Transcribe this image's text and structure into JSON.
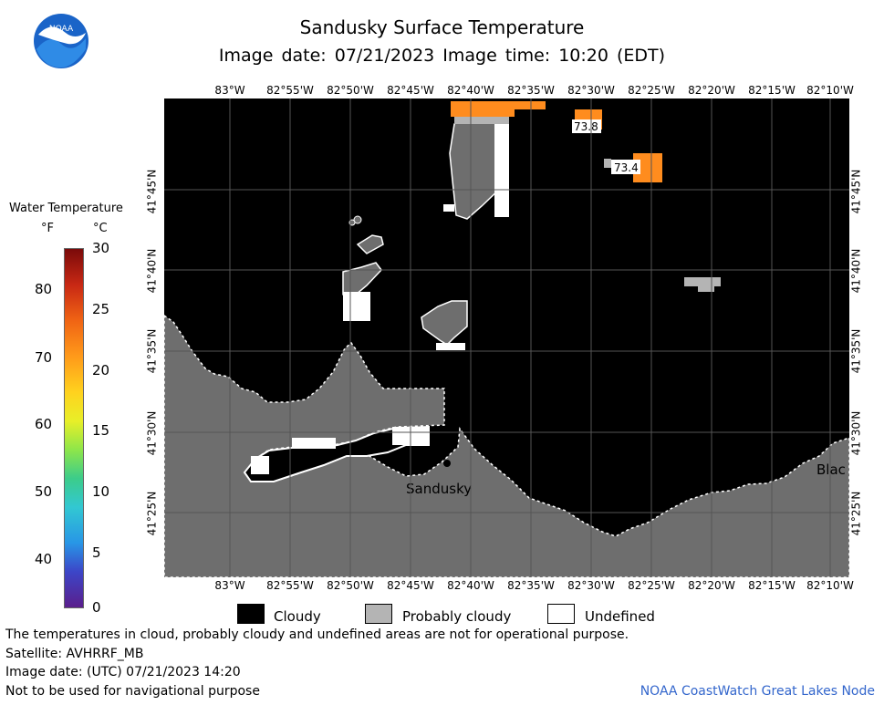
{
  "title": "Sandusky Surface Temperature",
  "subtitle": "Image date: 07/21/2023     Image time: 10:20 (EDT)",
  "logo": {
    "name": "noaa-logo",
    "text": "NOAA"
  },
  "map": {
    "longitude_labels": [
      "83°W",
      "82°55'W",
      "82°50'W",
      "82°45'W",
      "82°40'W",
      "82°35'W",
      "82°30'W",
      "82°25'W",
      "82°20'W",
      "82°15'W",
      "82°10'W"
    ],
    "latitude_labels": [
      "41°45'N",
      "41°40'N",
      "41°35'N",
      "41°30'N",
      "41°25'N"
    ],
    "temperature_labels": [
      "73.8",
      "73.4"
    ],
    "place_labels": [
      "Sandusky",
      "Blac"
    ],
    "colors": {
      "cloudy": "#000000",
      "probably_cloudy": "#b4b4b4",
      "land": "#6e6e6e",
      "undefined": "#ffffff",
      "warm": "#ff8c1e"
    }
  },
  "colorbar": {
    "title": "Water Temperature",
    "unit_f": "°F",
    "unit_c": "°C",
    "f_ticks": [
      "80",
      "70",
      "60",
      "50",
      "40"
    ],
    "c_ticks": [
      "30",
      "25",
      "20",
      "15",
      "10",
      "5",
      "0"
    ]
  },
  "legend": {
    "items": [
      {
        "label": "Cloudy",
        "color": "#000000"
      },
      {
        "label": "Probably cloudy",
        "color": "#b4b4b4"
      },
      {
        "label": "Undefined",
        "color": "#ffffff"
      }
    ]
  },
  "footer": {
    "line1": "The temperatures in cloud, probably cloudy and undefined areas are not for operational purpose.",
    "line2": "Satellite: AVHRRF_MB",
    "line3": "Image date: (UTC) 07/21/2023  14:20",
    "line4": "Not to be used for navigational purpose",
    "credit": "NOAA CoastWatch Great Lakes Node"
  }
}
